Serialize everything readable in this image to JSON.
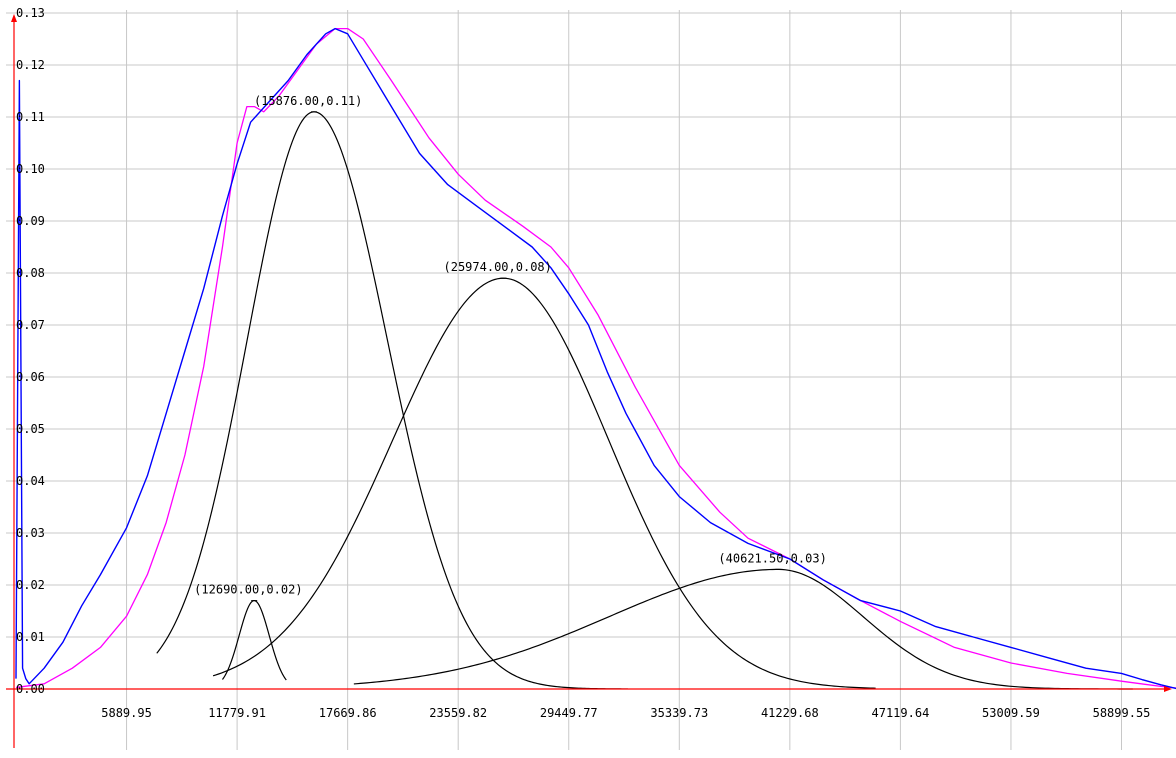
{
  "chart_data": {
    "type": "line",
    "title": "",
    "xlabel": "",
    "ylabel": "",
    "xlim": [
      0,
      62320
    ],
    "ylim": [
      0,
      0.14
    ],
    "grid": true,
    "x_ticks": [
      "5889.95",
      "11779.91",
      "17669.86",
      "23559.82",
      "29449.77",
      "35339.73",
      "41229.68",
      "47119.64",
      "53009.59",
      "58899.55"
    ],
    "x_tick_values": [
      5889.95,
      11779.91,
      17669.86,
      23559.82,
      29449.77,
      35339.73,
      41229.68,
      47119.64,
      53009.59,
      58899.55
    ],
    "y_ticks": [
      "0.00",
      "0.01",
      "0.02",
      "0.03",
      "0.04",
      "0.05",
      "0.06",
      "0.07",
      "0.08",
      "0.09",
      "0.10",
      "0.11",
      "0.12",
      "0.13"
    ],
    "y_tick_values": [
      0,
      0.01,
      0.02,
      0.03,
      0.04,
      0.05,
      0.06,
      0.07,
      0.08,
      0.09,
      0.1,
      0.11,
      0.12,
      0.13
    ],
    "colors": {
      "measured": "#0000ff",
      "fit": "#ff00ff",
      "components": "#000000",
      "axes": "#ff0000",
      "grid": "#c8c8c8"
    },
    "series": [
      {
        "role": "measured",
        "x": [
          0,
          180,
          350,
          520,
          700,
          1500,
          2500,
          3500,
          4500,
          5890,
          7000,
          8000,
          9000,
          10000,
          11000,
          11780,
          12500,
          13500,
          14500,
          15500,
          16500,
          17000,
          17670,
          18500,
          20000,
          21500,
          23000,
          24500,
          26000,
          27500,
          28500,
          29450,
          30500,
          31500,
          32500,
          34000,
          35340,
          37000,
          39000,
          41230,
          43000,
          45000,
          47120,
          49000,
          51000,
          53010,
          55000,
          57000,
          58900,
          60000,
          61000,
          61800,
          62200
        ],
        "y": [
          0.002,
          0.117,
          0.004,
          0.002,
          0.001,
          0.004,
          0.009,
          0.016,
          0.022,
          0.031,
          0.041,
          0.053,
          0.065,
          0.077,
          0.091,
          0.101,
          0.109,
          0.113,
          0.117,
          0.122,
          0.126,
          0.127,
          0.126,
          0.121,
          0.112,
          0.103,
          0.097,
          0.093,
          0.089,
          0.085,
          0.081,
          0.076,
          0.07,
          0.061,
          0.053,
          0.043,
          0.037,
          0.032,
          0.028,
          0.025,
          0.021,
          0.017,
          0.015,
          0.012,
          0.01,
          0.008,
          0.006,
          0.004,
          0.003,
          0.0018,
          0.0008,
          0.0001,
          0
        ]
      },
      {
        "role": "fit",
        "x": [
          0,
          1500,
          3000,
          4500,
          5890,
          7000,
          8000,
          9000,
          10000,
          11000,
          11780,
          12300,
          12700,
          13200,
          14000,
          15000,
          16000,
          17000,
          17670,
          18500,
          20000,
          22000,
          23560,
          25000,
          27000,
          28500,
          29450,
          31000,
          33000,
          35340,
          37500,
          39000,
          41230,
          43000,
          45000,
          47120,
          50000,
          53010,
          56000,
          58900,
          61000,
          62300
        ],
        "y": [
          0.0003,
          0.001,
          0.004,
          0.008,
          0.014,
          0.022,
          0.032,
          0.045,
          0.062,
          0.085,
          0.105,
          0.112,
          0.112,
          0.111,
          0.114,
          0.119,
          0.124,
          0.127,
          0.127,
          0.125,
          0.117,
          0.106,
          0.099,
          0.094,
          0.089,
          0.085,
          0.081,
          0.072,
          0.058,
          0.043,
          0.034,
          0.029,
          0.025,
          0.021,
          0.017,
          0.013,
          0.008,
          0.005,
          0.003,
          0.0015,
          0.0005,
          0
        ]
      }
    ],
    "components": [
      {
        "label": "(12690.00,0.02)",
        "center": 12690,
        "peak": 0.017,
        "sigma_left": 800,
        "sigma_right": 800,
        "x_start": 11000,
        "x_end": 14400
      },
      {
        "label": "(15876.00,0.11)",
        "center": 15876,
        "peak": 0.111,
        "sigma_left": 3550,
        "sigma_right": 3900,
        "x_start": 7500,
        "x_end": 32600
      },
      {
        "label": "(25974.00,0.08)",
        "center": 25974,
        "peak": 0.079,
        "sigma_left": 5900,
        "sigma_right": 5600,
        "x_start": 10500,
        "x_end": 45800
      },
      {
        "label": "(40621.50,0.03)",
        "center": 40621.5,
        "peak": 0.023,
        "sigma_left": 9000,
        "sigma_right": 4500,
        "x_start": 18000,
        "x_end": 59500
      }
    ]
  }
}
